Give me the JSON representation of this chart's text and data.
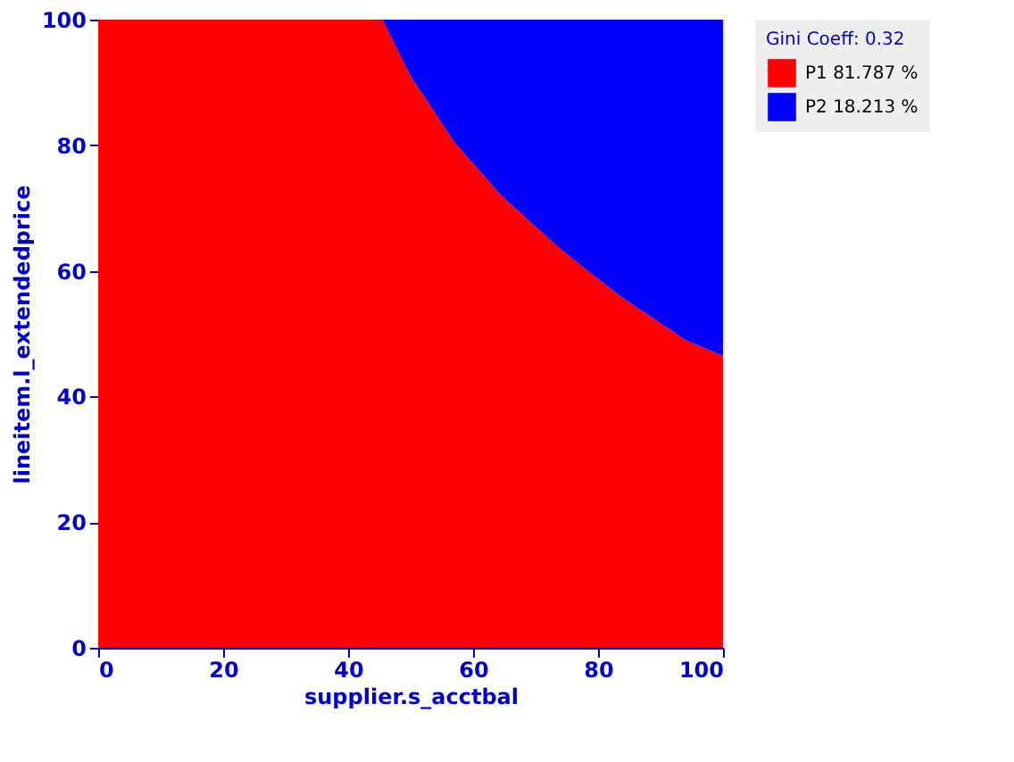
{
  "chart_data": {
    "type": "area",
    "stacked": true,
    "xlabel": "supplier.s_acctbal",
    "ylabel": "lineitem.l_extendedprice",
    "legend_title": "Gini Coeff: 0.32",
    "legend": "top right",
    "x": [
      0,
      45.5,
      50,
      57,
      64.5,
      74,
      83.5,
      94,
      100
    ],
    "series": [
      {
        "name": "P1 81.787 %",
        "color": "#ff0000",
        "values": [
          100,
          100,
          91,
          80.5,
          72,
          63.5,
          56,
          49,
          46.5
        ]
      },
      {
        "name": "P2 18.213 %",
        "color": "#0000ff",
        "values": [
          0,
          0,
          9,
          19.5,
          28,
          36.5,
          44,
          51,
          53.5
        ]
      }
    ],
    "xlim": [
      0,
      100
    ],
    "xticks": [
      0,
      20,
      40,
      60,
      80,
      100
    ],
    "ylim": [
      0,
      100
    ],
    "yticks": [
      0,
      20,
      40,
      60,
      80,
      100
    ],
    "grid": false
  }
}
